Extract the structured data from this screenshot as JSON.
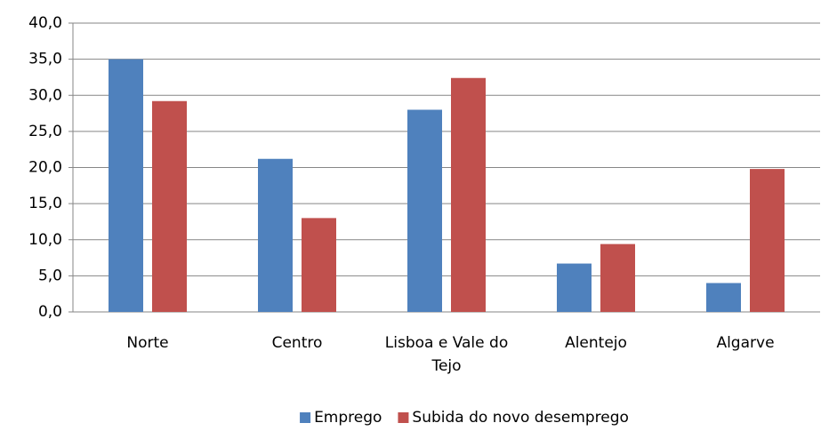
{
  "chart_data": {
    "type": "bar",
    "categories": [
      "Norte",
      "Centro",
      "Lisboa e Vale do Tejo",
      "Alentejo",
      "Algarve"
    ],
    "series": [
      {
        "name": "Emprego",
        "color": "#4f81bd",
        "values": [
          35.0,
          21.2,
          28.0,
          6.7,
          4.0
        ]
      },
      {
        "name": "Subida do novo desemprego",
        "color": "#c0504d",
        "values": [
          29.2,
          13.0,
          32.4,
          9.4,
          19.8
        ]
      }
    ],
    "ylim": [
      0,
      40
    ],
    "yticks": [
      {
        "value": 0,
        "label": "0,0"
      },
      {
        "value": 5,
        "label": "5,0"
      },
      {
        "value": 10,
        "label": "10,0"
      },
      {
        "value": 15,
        "label": "15,0"
      },
      {
        "value": 20,
        "label": "20,0"
      },
      {
        "value": 25,
        "label": "25,0"
      },
      {
        "value": 30,
        "label": "30,0"
      },
      {
        "value": 35,
        "label": "35,0"
      },
      {
        "value": 40,
        "label": "40,0"
      }
    ],
    "grid": true,
    "legend": "bottom"
  }
}
